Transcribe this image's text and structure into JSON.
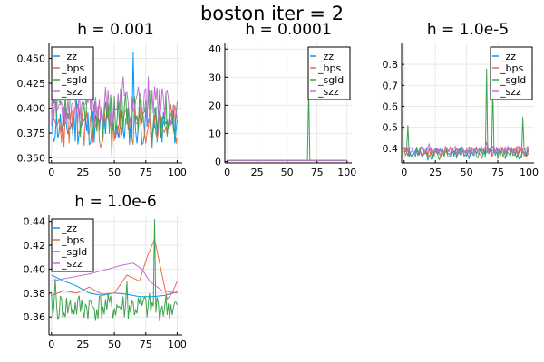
{
  "suptitle": "boston iter = 2",
  "colors": {
    "zz": "#009AFA",
    "bps": "#E36F47",
    "sgld": "#3EA44E",
    "szz": "#C271D2",
    "grid": "#e8e8e8",
    "axis": "#000000"
  },
  "chart_data": [
    {
      "type": "line",
      "title": "h = 0.001",
      "xlim": [
        -2,
        104
      ],
      "ylim": [
        0.345,
        0.465
      ],
      "xticks": [
        0,
        25,
        50,
        75,
        100
      ],
      "xtick_labels": [
        "0",
        "25",
        "50",
        "75",
        "100"
      ],
      "yticks": [
        0.35,
        0.375,
        0.4,
        0.425,
        0.45
      ],
      "ytick_labels": [
        "0.350",
        "0.375",
        "0.400",
        "0.425",
        "0.450"
      ],
      "grid": true,
      "legend": "top-left",
      "series": [
        {
          "name": "_zz",
          "kind": "noise",
          "base": 0.382,
          "amp": 0.02,
          "spikes": [
            [
              65,
              0.456
            ],
            [
              20,
              0.41
            ]
          ],
          "seed": 11
        },
        {
          "name": "_bps",
          "kind": "noise",
          "base": 0.382,
          "amp": 0.022,
          "spikes": [
            [
              48,
              0.352
            ]
          ],
          "seed": 23
        },
        {
          "name": "_sgld",
          "kind": "noise",
          "base": 0.395,
          "amp": 0.025,
          "spikes": [
            [
              5,
              0.425
            ],
            [
              80,
              0.36
            ]
          ],
          "seed": 37
        },
        {
          "name": "_szz",
          "kind": "noise",
          "base": 0.402,
          "amp": 0.02,
          "spikes": [
            [
              57,
              0.432
            ],
            [
              77,
              0.432
            ]
          ],
          "seed": 53
        }
      ]
    },
    {
      "type": "line",
      "title": "h = 0.0001",
      "xlim": [
        -2,
        104
      ],
      "ylim": [
        -0.5,
        42
      ],
      "xticks": [
        0,
        25,
        50,
        75,
        100
      ],
      "xtick_labels": [
        "0",
        "25",
        "50",
        "75",
        "100"
      ],
      "yticks": [
        0,
        10,
        20,
        30,
        40
      ],
      "ytick_labels": [
        "0",
        "10",
        "20",
        "30",
        "40"
      ],
      "grid": true,
      "legend": "top-right",
      "series": [
        {
          "name": "_zz",
          "kind": "flat",
          "base": 0.38,
          "amp": 0,
          "seed": 3
        },
        {
          "name": "_bps",
          "kind": "flat",
          "base": 0.38,
          "amp": 0,
          "seed": 5
        },
        {
          "name": "_sgld",
          "kind": "flat",
          "base": 0.38,
          "amp": 0,
          "spikes": [
            [
              68,
              25.5
            ]
          ],
          "seed": 7
        },
        {
          "name": "_szz",
          "kind": "flat",
          "base": 0.39,
          "amp": 0,
          "seed": 9
        }
      ]
    },
    {
      "type": "line",
      "title": "h = 1.0e-5",
      "xlim": [
        -2,
        104
      ],
      "ylim": [
        0.33,
        0.9
      ],
      "xticks": [
        0,
        25,
        50,
        75,
        100
      ],
      "xtick_labels": [
        "0",
        "25",
        "50",
        "75",
        "100"
      ],
      "yticks": [
        0.4,
        0.5,
        0.6,
        0.7,
        0.8
      ],
      "ytick_labels": [
        "0.4",
        "0.5",
        "0.6",
        "0.7",
        "0.8"
      ],
      "grid": true,
      "legend": "top-right",
      "series": [
        {
          "name": "_zz",
          "kind": "noise",
          "base": 0.38,
          "amp": 0.02,
          "seed": 13
        },
        {
          "name": "_bps",
          "kind": "noise",
          "base": 0.385,
          "amp": 0.025,
          "seed": 17
        },
        {
          "name": "_sgld",
          "kind": "noise",
          "base": 0.375,
          "amp": 0.03,
          "spikes": [
            [
              3,
              0.51
            ],
            [
              66,
              0.78
            ],
            [
              71,
              0.7
            ],
            [
              95,
              0.55
            ]
          ],
          "seed": 19
        },
        {
          "name": "_szz",
          "kind": "noise",
          "base": 0.39,
          "amp": 0.02,
          "spikes": [
            [
              20,
              0.42
            ],
            [
              66,
              0.43
            ]
          ],
          "seed": 29
        }
      ]
    },
    {
      "type": "line",
      "title": "h = 1.0e-6",
      "xlim": [
        -2,
        104
      ],
      "ylim": [
        0.345,
        0.445
      ],
      "xticks": [
        0,
        25,
        50,
        75,
        100
      ],
      "xtick_labels": [
        "0",
        "25",
        "50",
        "75",
        "100"
      ],
      "yticks": [
        0.36,
        0.38,
        0.4,
        0.42,
        0.44
      ],
      "ytick_labels": [
        "0.36",
        "0.38",
        "0.40",
        "0.42",
        "0.44"
      ],
      "grid": true,
      "legend": "top-left",
      "series": [
        {
          "name": "_zz",
          "kind": "smooth",
          "points": [
            [
              0,
              0.395
            ],
            [
              10,
              0.39
            ],
            [
              20,
              0.386
            ],
            [
              30,
              0.38
            ],
            [
              40,
              0.378
            ],
            [
              50,
              0.38
            ],
            [
              60,
              0.379
            ],
            [
              70,
              0.377
            ],
            [
              80,
              0.377
            ],
            [
              90,
              0.378
            ],
            [
              100,
              0.381
            ]
          ]
        },
        {
          "name": "_bps",
          "kind": "smooth",
          "points": [
            [
              0,
              0.378
            ],
            [
              10,
              0.382
            ],
            [
              20,
              0.38
            ],
            [
              30,
              0.385
            ],
            [
              40,
              0.379
            ],
            [
              50,
              0.38
            ],
            [
              60,
              0.395
            ],
            [
              70,
              0.39
            ],
            [
              76,
              0.41
            ],
            [
              82,
              0.425
            ],
            [
              88,
              0.395
            ],
            [
              92,
              0.375
            ],
            [
              96,
              0.38
            ],
            [
              100,
              0.39
            ]
          ]
        },
        {
          "name": "_sgld",
          "kind": "noise",
          "base": 0.368,
          "amp": 0.012,
          "spikes": [
            [
              3,
              0.392
            ],
            [
              82,
              0.442
            ],
            [
              60,
              0.39
            ]
          ],
          "seed": 41
        },
        {
          "name": "_szz",
          "kind": "smooth",
          "points": [
            [
              0,
              0.39
            ],
            [
              15,
              0.393
            ],
            [
              30,
              0.396
            ],
            [
              45,
              0.4
            ],
            [
              55,
              0.403
            ],
            [
              65,
              0.405
            ],
            [
              72,
              0.4
            ],
            [
              78,
              0.39
            ],
            [
              88,
              0.382
            ],
            [
              100,
              0.38
            ]
          ]
        }
      ]
    }
  ]
}
